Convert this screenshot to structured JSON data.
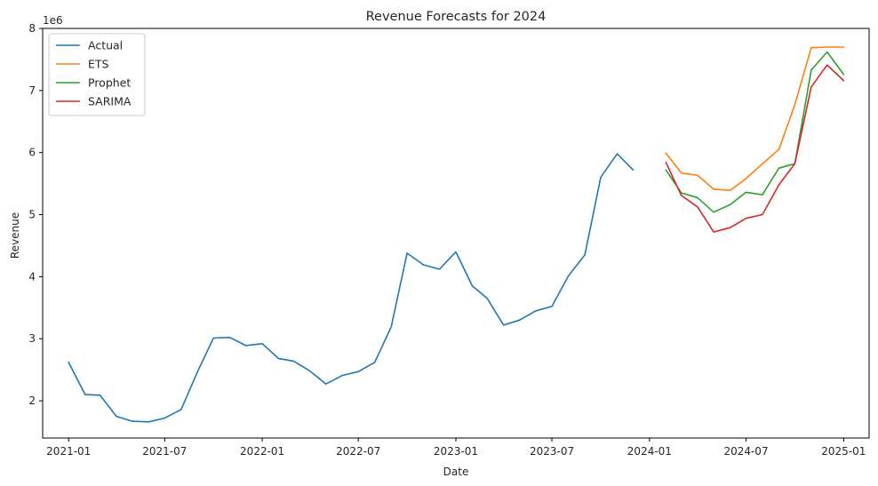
{
  "chart_data": {
    "type": "line",
    "title": "Revenue Forecasts for 2024",
    "xlabel": "Date",
    "ylabel": "Revenue",
    "y_scale_label": "1e6",
    "y_unit_multiplier": 1000000,
    "xlim": [
      "2020-11-13",
      "2025-02-18"
    ],
    "ylim": [
      1.4,
      8.0
    ],
    "x_ticks": [
      {
        "date": "2021-01-01",
        "label": "2021-01"
      },
      {
        "date": "2021-07-01",
        "label": "2021-07"
      },
      {
        "date": "2022-01-01",
        "label": "2022-01"
      },
      {
        "date": "2022-07-01",
        "label": "2022-07"
      },
      {
        "date": "2023-01-01",
        "label": "2023-01"
      },
      {
        "date": "2023-07-01",
        "label": "2023-07"
      },
      {
        "date": "2024-01-01",
        "label": "2024-01"
      },
      {
        "date": "2024-07-01",
        "label": "2024-07"
      },
      {
        "date": "2025-01-01",
        "label": "2025-01"
      }
    ],
    "y_ticks": [
      2,
      3,
      4,
      5,
      6,
      7,
      8
    ],
    "grid": false,
    "legend_position": "top-left",
    "series": [
      {
        "name": "Actual",
        "color": "#1f77b4",
        "x": [
          "2021-01-01",
          "2021-02-01",
          "2021-03-01",
          "2021-04-01",
          "2021-05-01",
          "2021-06-01",
          "2021-07-01",
          "2021-08-01",
          "2021-09-01",
          "2021-10-01",
          "2021-11-01",
          "2021-12-01",
          "2022-01-01",
          "2022-02-01",
          "2022-03-01",
          "2022-04-01",
          "2022-05-01",
          "2022-06-01",
          "2022-07-01",
          "2022-08-01",
          "2022-09-01",
          "2022-10-01",
          "2022-11-01",
          "2022-12-01",
          "2023-01-01",
          "2023-02-01",
          "2023-03-01",
          "2023-04-01",
          "2023-05-01",
          "2023-06-01",
          "2023-07-01",
          "2023-08-01",
          "2023-09-01",
          "2023-10-01",
          "2023-11-01",
          "2023-12-01"
        ],
        "values": [
          2.62,
          2.1,
          2.09,
          1.75,
          1.67,
          1.66,
          1.72,
          1.86,
          2.47,
          3.01,
          3.02,
          2.89,
          2.92,
          2.68,
          2.64,
          2.48,
          2.27,
          2.41,
          2.47,
          2.62,
          3.19,
          4.38,
          4.19,
          4.12,
          4.4,
          3.85,
          3.65,
          3.22,
          3.3,
          3.45,
          3.52,
          4.01,
          4.35,
          5.6,
          5.98,
          5.72
        ]
      },
      {
        "name": "ETS",
        "color": "#ff7f0e",
        "x": [
          "2024-02-01",
          "2024-03-01",
          "2024-04-01",
          "2024-05-01",
          "2024-06-01",
          "2024-07-01",
          "2024-08-01",
          "2024-09-01",
          "2024-10-01",
          "2024-11-01",
          "2024-12-01",
          "2025-01-01"
        ],
        "values": [
          5.99,
          5.67,
          5.63,
          5.41,
          5.39,
          5.58,
          5.82,
          6.05,
          6.77,
          7.69,
          7.7,
          7.7
        ]
      },
      {
        "name": "Prophet",
        "color": "#2ca02c",
        "x": [
          "2024-02-01",
          "2024-03-01",
          "2024-04-01",
          "2024-05-01",
          "2024-06-01",
          "2024-07-01",
          "2024-08-01",
          "2024-09-01",
          "2024-10-01",
          "2024-11-01",
          "2024-12-01",
          "2025-01-01"
        ],
        "values": [
          5.72,
          5.35,
          5.27,
          5.04,
          5.16,
          5.36,
          5.32,
          5.75,
          5.82,
          7.33,
          7.62,
          7.26
        ]
      },
      {
        "name": "SARIMA",
        "color": "#d62728",
        "x": [
          "2024-02-01",
          "2024-03-01",
          "2024-04-01",
          "2024-05-01",
          "2024-06-01",
          "2024-07-01",
          "2024-08-01",
          "2024-09-01",
          "2024-10-01",
          "2024-11-01",
          "2024-12-01",
          "2025-01-01"
        ],
        "values": [
          5.84,
          5.31,
          5.12,
          4.72,
          4.79,
          4.94,
          5.0,
          5.48,
          5.82,
          7.06,
          7.41,
          7.16
        ]
      }
    ]
  }
}
